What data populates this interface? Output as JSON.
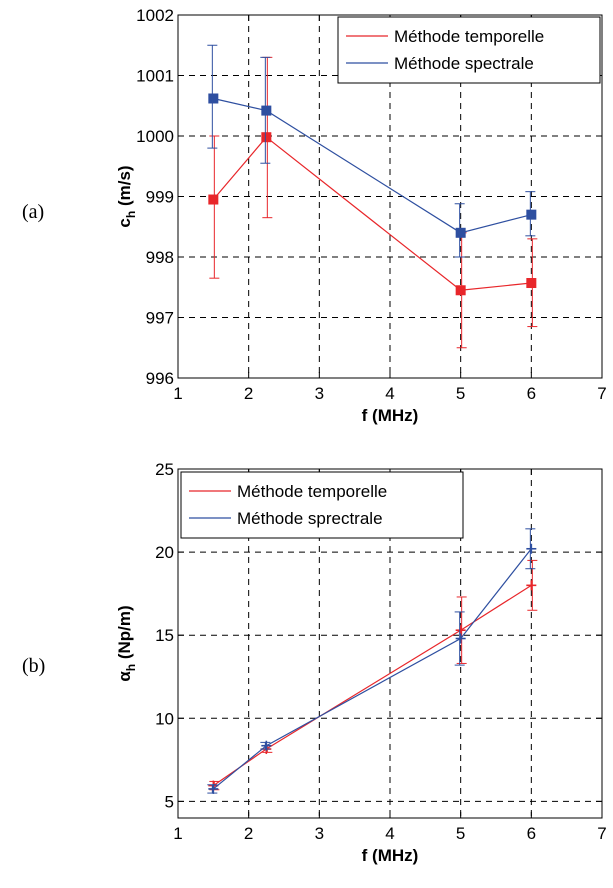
{
  "chart_data": [
    {
      "panel_label": "(a)",
      "type": "line",
      "xlabel": "f (MHz)",
      "ylabel": "c",
      "ylabel_sub": "h",
      "ylabel_rest": " (m/s)",
      "xlim": [
        1,
        7
      ],
      "ylim": [
        996,
        1002
      ],
      "xticks": [
        "1",
        "2",
        "3",
        "4",
        "5",
        "6",
        "7"
      ],
      "yticks": [
        "996",
        "997",
        "998",
        "999",
        "1000",
        "1001",
        "1002"
      ],
      "grid": true,
      "legend_position": "top-right",
      "marker": "square",
      "series": [
        {
          "name": "Méthode temporelle",
          "color": "#e8262a",
          "x": [
            1.5,
            2.25,
            5,
            6
          ],
          "y": [
            998.95,
            999.98,
            997.45,
            997.57
          ],
          "err_low": [
            997.65,
            998.65,
            996.5,
            996.85
          ],
          "err_high": [
            1000.0,
            1001.3,
            998.4,
            998.3
          ]
        },
        {
          "name": "Méthode spectrale",
          "color": "#2e4fa0",
          "x": [
            1.5,
            2.25,
            5,
            6
          ],
          "y": [
            1000.62,
            1000.42,
            998.4,
            998.7
          ],
          "err_low": [
            999.8,
            999.55,
            998.0,
            998.35
          ],
          "err_high": [
            1001.5,
            1001.3,
            998.88,
            999.08
          ]
        }
      ]
    },
    {
      "panel_label": "(b)",
      "type": "line",
      "xlabel": "f (MHz)",
      "ylabel": "α",
      "ylabel_sub": "h",
      "ylabel_rest": " (Np/m)",
      "xlim": [
        1,
        7
      ],
      "ylim": [
        4,
        25
      ],
      "xticks": [
        "1",
        "2",
        "3",
        "4",
        "5",
        "6",
        "7"
      ],
      "yticks": [
        "5",
        "10",
        "15",
        "20",
        "25"
      ],
      "ytick_values": [
        5,
        10,
        15,
        20,
        25
      ],
      "grid": true,
      "legend_position": "top-left",
      "marker": "plus",
      "series": [
        {
          "name": "Méthode temporelle",
          "color": "#e8262a",
          "x": [
            1.5,
            2.25,
            5,
            6
          ],
          "y": [
            5.95,
            8.15,
            15.3,
            18.0
          ],
          "err_low": [
            5.7,
            7.95,
            13.3,
            16.5
          ],
          "err_high": [
            6.2,
            8.35,
            17.3,
            19.5
          ]
        },
        {
          "name": "Méthode sprectrale",
          "color": "#2e4fa0",
          "x": [
            1.5,
            2.25,
            5,
            6
          ],
          "y": [
            5.75,
            8.35,
            14.8,
            20.2
          ],
          "err_low": [
            5.5,
            8.15,
            13.2,
            19.0
          ],
          "err_high": [
            6.0,
            8.55,
            16.4,
            21.4
          ]
        }
      ]
    }
  ]
}
